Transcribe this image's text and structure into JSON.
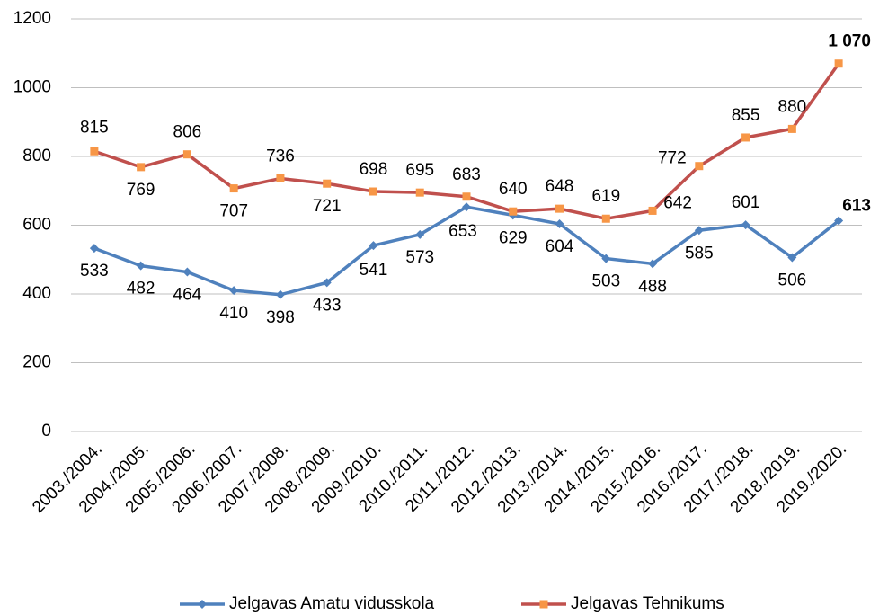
{
  "chart_data": {
    "type": "line",
    "categories": [
      "2003./2004.",
      "2004./2005.",
      "2005./2006.",
      "2006./2007.",
      "2007./2008.",
      "2008./2009.",
      "2009./2010.",
      "2010./2011.",
      "2011./2012.",
      "2012./2013.",
      "2013./2014.",
      "2014./2015.",
      "2015./2016.",
      "2016./2017.",
      "2017./2018.",
      "2018./2019.",
      "2019./2020."
    ],
    "series": [
      {
        "name": "Jelgavas Amatu vidusskola",
        "color": "#4f81bd",
        "label_color": "#1f3864",
        "marker": "diamond",
        "values": [
          533,
          482,
          464,
          410,
          398,
          433,
          541,
          573,
          653,
          629,
          604,
          503,
          488,
          585,
          601,
          506,
          613
        ]
      },
      {
        "name": "Jelgavas Tehnikums",
        "color": "#c0504d",
        "label_color": "#c00000",
        "marker": "square",
        "values": [
          815,
          769,
          806,
          707,
          736,
          721,
          698,
          695,
          683,
          640,
          648,
          619,
          642,
          772,
          855,
          880,
          1070
        ],
        "value_labels": [
          "815",
          "769",
          "806",
          "707",
          "736",
          "721",
          "698",
          "695",
          "683",
          "640",
          "648",
          "619",
          "642",
          "772",
          "855",
          "880",
          "1 070"
        ]
      }
    ],
    "ylim": [
      0,
      1200
    ],
    "yticks": [
      0,
      200,
      400,
      600,
      800,
      1000,
      1200
    ],
    "grid": true,
    "legend": "bottom"
  }
}
